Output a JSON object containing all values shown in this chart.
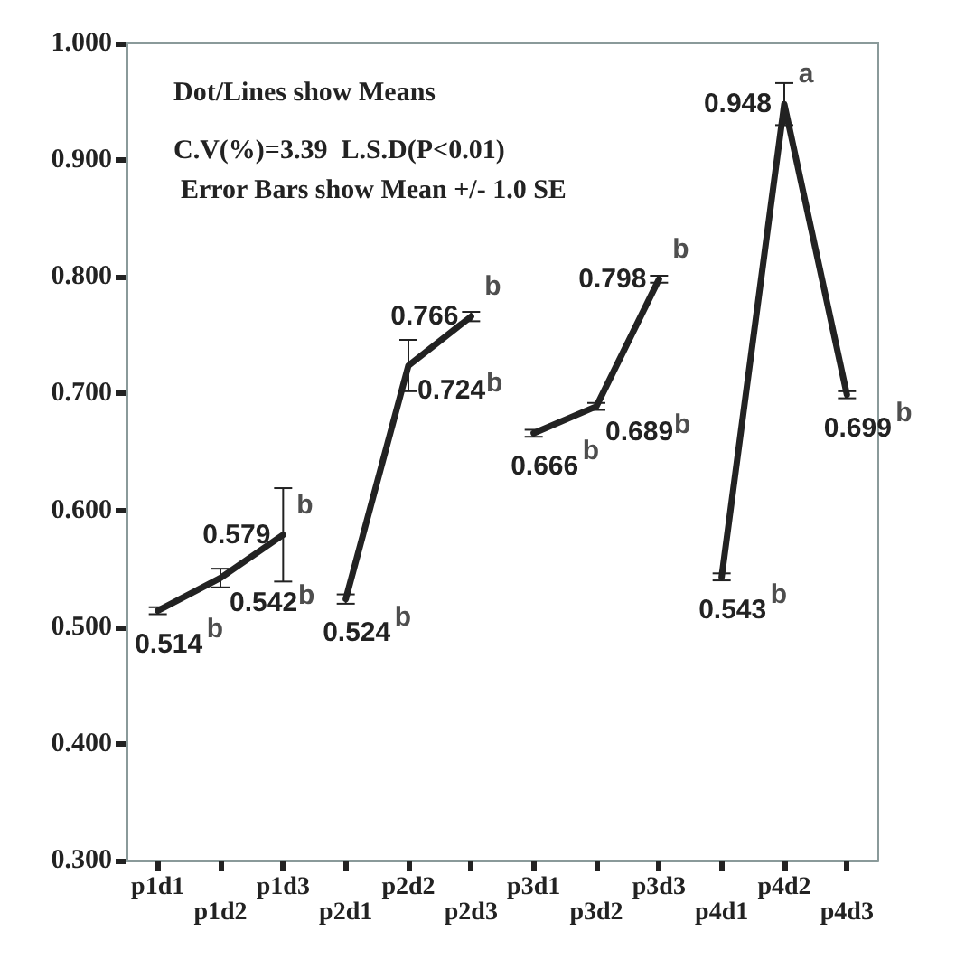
{
  "chart_data": {
    "type": "line",
    "categories": [
      "p1d1",
      "p1d2",
      "p1d3",
      "p2d1",
      "p2d2",
      "p2d3",
      "p3d1",
      "p3d2",
      "p3d3",
      "p4d1",
      "p4d2",
      "p4d3"
    ],
    "series": [
      {
        "color": "#222222",
        "values": [
          0.514,
          0.542,
          0.579,
          null,
          null,
          null,
          null,
          null,
          null,
          null,
          null,
          null
        ],
        "errors": [
          0.003,
          0.008,
          0.04,
          null,
          null,
          null,
          null,
          null,
          null,
          null,
          null,
          null
        ]
      },
      {
        "color": "#222222",
        "values": [
          null,
          null,
          null,
          0.524,
          0.724,
          0.766,
          null,
          null,
          null,
          null,
          null,
          null
        ],
        "errors": [
          null,
          null,
          null,
          0.004,
          0.022,
          0.004,
          null,
          null,
          null,
          null,
          null,
          null
        ]
      },
      {
        "color": "#222222",
        "values": [
          null,
          null,
          null,
          null,
          null,
          null,
          0.666,
          0.689,
          0.798,
          null,
          null,
          null
        ],
        "errors": [
          null,
          null,
          null,
          null,
          null,
          null,
          0.003,
          0.003,
          0.003,
          null,
          null,
          null
        ]
      },
      {
        "color": "#222222",
        "values": [
          null,
          null,
          null,
          null,
          null,
          null,
          null,
          null,
          null,
          0.543,
          0.948,
          0.699
        ],
        "errors": [
          null,
          null,
          null,
          null,
          null,
          null,
          null,
          null,
          null,
          0.003,
          0.018,
          0.003
        ]
      }
    ],
    "ylim": [
      0.3,
      1.0
    ],
    "yticks": [
      {
        "value": 0.3,
        "label": "0.300"
      },
      {
        "value": 0.4,
        "label": "0.400"
      },
      {
        "value": 0.5,
        "label": "0.500"
      },
      {
        "value": 0.6,
        "label": "0.600"
      },
      {
        "value": 0.7,
        "label": "0.700"
      },
      {
        "value": 0.8,
        "label": "0.800"
      },
      {
        "value": 0.9,
        "label": "0.900"
      },
      {
        "value": 1.0,
        "label": "1.000"
      }
    ],
    "data_labels": true,
    "marker": "none",
    "line_style": "solid",
    "grid": false,
    "annotations": [
      "Dot/Lines show Means",
      "C.V(%)=3.39  L.S.D(P<0.01)",
      "Error Bars show Mean +/- 1.0 SE",
      {
        "text": "b",
        "x": "p1d1",
        "y": 0.514
      },
      {
        "text": "b",
        "x": "p1d2",
        "y": 0.542
      },
      {
        "text": "b",
        "x": "p1d3",
        "y": 0.579
      },
      {
        "text": "b",
        "x": "p2d1",
        "y": 0.524
      },
      {
        "text": "b",
        "x": "p2d2",
        "y": 0.724
      },
      {
        "text": "b",
        "x": "p2d3",
        "y": 0.766
      },
      {
        "text": "b",
        "x": "p3d1",
        "y": 0.666
      },
      {
        "text": "b",
        "x": "p3d2",
        "y": 0.689
      },
      {
        "text": "b",
        "x": "p3d3",
        "y": 0.798
      },
      {
        "text": "b",
        "x": "p4d1",
        "y": 0.543
      },
      {
        "text": "a",
        "x": "p4d2",
        "y": 0.948
      },
      {
        "text": "b",
        "x": "p4d3",
        "y": 0.699
      }
    ]
  }
}
